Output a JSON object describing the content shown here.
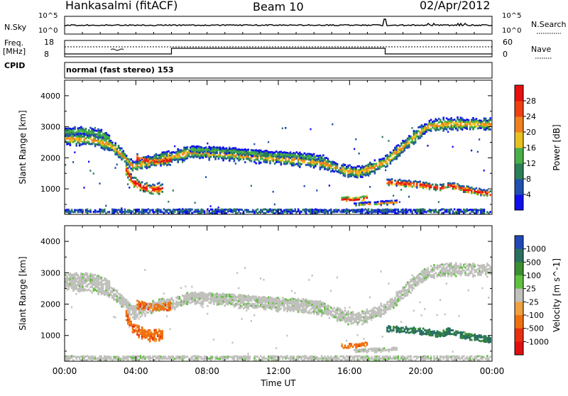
{
  "header": {
    "title": "Hankasalmi (fitACF)",
    "beam": "Beam 10",
    "date": "02/Apr/2012"
  },
  "header_panels": {
    "nsky_label": "N.Sky",
    "nsky_ticks": [
      "10^5",
      "10^0"
    ],
    "nsearch_label": "N.Search",
    "nsearch_ticks": [
      "10^5",
      "10^0"
    ],
    "freq_label": "Freq.",
    "freq_unit": "[MHz]",
    "freq_ticks": [
      "18",
      "8"
    ],
    "cpid_label": "CPID",
    "nave_label": "Nave",
    "nave_ticks": [
      "60",
      "0"
    ],
    "cpid_text": "normal (fast stereo) 153"
  },
  "chart_data": [
    {
      "type": "heatmap",
      "name": "power-panel",
      "ylabel": "Slant Range [km]",
      "xlabel": "",
      "x_range": [
        "00:00",
        "24:00"
      ],
      "ylim": [
        180,
        4500
      ],
      "yticks": [
        "1000",
        "2000",
        "3000",
        "4000"
      ],
      "colorbar": {
        "label": "Power [dB]",
        "ticks": [
          "4",
          "8",
          "12",
          "16",
          "20",
          "24",
          "28"
        ],
        "range": [
          0,
          32
        ],
        "colors": [
          "#1010ee",
          "#2050b0",
          "#2a7e58",
          "#48b048",
          "#e8c020",
          "#f08020",
          "#f04010",
          "#e81010"
        ]
      }
    },
    {
      "type": "heatmap",
      "name": "velocity-panel",
      "ylabel": "Slant Range [km]",
      "xlabel": "Time UT",
      "x_range": [
        "00:00",
        "24:00"
      ],
      "ylim": [
        180,
        4500
      ],
      "yticks": [
        "1000",
        "2000",
        "3000",
        "4000"
      ],
      "xticks": [
        "00:00",
        "04:00",
        "08:00",
        "12:00",
        "16:00",
        "20:00",
        "00:00"
      ],
      "colorbar": {
        "label": "Velocity [m s^-1]",
        "ticks": [
          "1000",
          "500",
          "100",
          "25",
          "-25",
          "-100",
          "-500",
          "-1000"
        ],
        "colors": [
          "#2048b8",
          "#2a7060",
          "#3a9030",
          "#60c040",
          "#c0c0bc",
          "#f0a040",
          "#f07010",
          "#e83010",
          "#e01010"
        ]
      }
    }
  ]
}
